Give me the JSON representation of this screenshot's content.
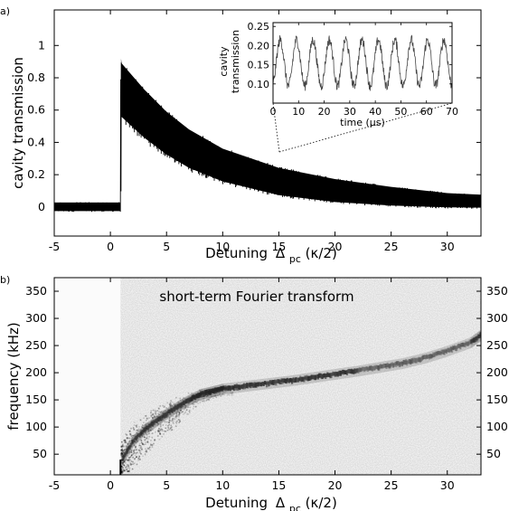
{
  "chart_data": [
    {
      "type": "line",
      "panel_label": "a)",
      "xlabel": "Detuning",
      "xlabel_symbol": "Δ",
      "xlabel_subscript": "pc",
      "xlabel_units": "(κ/2)",
      "ylabel": "cavity transmission",
      "xlim": [
        -5,
        33
      ],
      "ylim": [
        -0.18,
        1.22
      ],
      "xticks": [
        -5,
        0,
        5,
        10,
        15,
        20,
        25,
        30
      ],
      "yticks": [
        0,
        0.2,
        0.4,
        0.6,
        0.8,
        1
      ],
      "ytick_labels": [
        "0",
        "0.2",
        "0.4",
        "0.6",
        "0.8",
        "1"
      ],
      "grid": false,
      "series": [
        {
          "x": [
            -5,
            0.9,
            0.95,
            1,
            3,
            5,
            7,
            10,
            15,
            20,
            25,
            30,
            33
          ],
          "y_mean": [
            0,
            0,
            0.78,
            0.77,
            0.6,
            0.47,
            0.37,
            0.26,
            0.15,
            0.09,
            0.06,
            0.04,
            0.03
          ],
          "y_upper": [
            0.03,
            0.03,
            0.93,
            0.9,
            0.74,
            0.6,
            0.49,
            0.37,
            0.25,
            0.18,
            0.13,
            0.09,
            0.08
          ],
          "y_lower": [
            -0.03,
            -0.03,
            0.55,
            0.52,
            0.4,
            0.3,
            0.22,
            0.14,
            0.06,
            0.02,
            0.0,
            -0.01,
            -0.01
          ]
        }
      ],
      "zoom_region_x": 15,
      "inset": {
        "type": "line",
        "xlabel": "time (μs)",
        "ylabel_line1": "cavity",
        "ylabel_line2": "transmission",
        "xlim": [
          0,
          70
        ],
        "ylim": [
          0.05,
          0.26
        ],
        "xticks": [
          0,
          10,
          20,
          30,
          40,
          50,
          60,
          70
        ],
        "yticks": [
          0.1,
          0.15,
          0.2,
          0.25
        ],
        "ytick_labels": [
          "0.10",
          "0.15",
          "0.20",
          "0.25"
        ],
        "period_us": 6.4,
        "mean": 0.155,
        "amplitude": 0.06
      }
    },
    {
      "type": "heatmap",
      "panel_label": "b)",
      "title": "short-term Fourier transform",
      "xlabel": "Detuning",
      "xlabel_symbol": "Δ",
      "xlabel_subscript": "pc",
      "xlabel_units": "(κ/2)",
      "ylabel": "frequency (kHz)",
      "xlim": [
        -5,
        33
      ],
      "ylim": [
        12,
        375
      ],
      "xticks": [
        -5,
        0,
        5,
        10,
        15,
        20,
        25,
        30
      ],
      "yticks": [
        50,
        100,
        150,
        200,
        250,
        300,
        350
      ],
      "signal_ridge": {
        "x": [
          1,
          2,
          3,
          4,
          5,
          6,
          7,
          8,
          9,
          10,
          12,
          14,
          16,
          18,
          20,
          22,
          24,
          26,
          28,
          30,
          32,
          33
        ],
        "frequency": [
          40,
          75,
          95,
          110,
          125,
          138,
          150,
          160,
          165,
          170,
          175,
          180,
          185,
          191,
          197,
          203,
          210,
          217,
          227,
          240,
          255,
          270
        ]
      },
      "signal_onset_x": 0.9
    }
  ]
}
